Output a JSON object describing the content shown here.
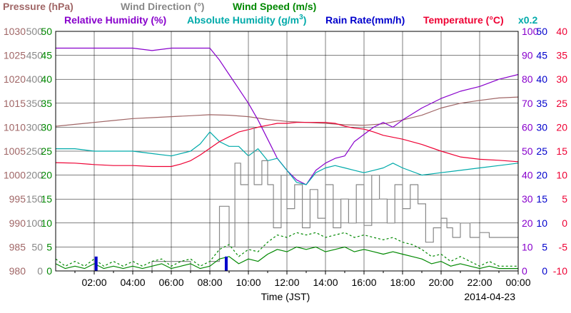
{
  "chart_data": {
    "type": "line",
    "title": "",
    "xlabel": "Time (JST)",
    "date_label": "2014-04-23",
    "x_ticks": [
      "02:00",
      "04:00",
      "06:00",
      "08:00",
      "10:00",
      "12:00",
      "14:00",
      "16:00",
      "18:00",
      "20:00",
      "22:00",
      "00:00"
    ],
    "x_range_hours": [
      0,
      24
    ],
    "grid": true,
    "legend": [
      {
        "label": "Pressure (hPa)",
        "color": "#a06666"
      },
      {
        "label": "Wind Direction (°)",
        "color": "#888888"
      },
      {
        "label": "Wind Speed (m/s)",
        "color": "#008800"
      },
      {
        "label": "Relative Humidity (%)",
        "color": "#8800cc"
      },
      {
        "label": "Absolute Humidity (g/m",
        "sup": "3",
        "close": ")",
        "color": "#00aaaa"
      },
      {
        "label": "Rain Rate(mm/h)",
        "color": "#0000cc"
      },
      {
        "label": "Temperature (°C)",
        "color": "#ee0033"
      }
    ],
    "abs_humidity_scale_note": "x0.2",
    "axes": {
      "pressure": {
        "ticks": [
          980,
          985,
          990,
          995,
          1000,
          1005,
          1010,
          1015,
          1020,
          1025,
          1030
        ],
        "range": [
          980,
          1030
        ],
        "color": "#a06666"
      },
      "wind_direction": {
        "ticks": [
          0,
          50,
          100,
          150,
          200,
          250,
          300,
          350,
          400,
          450,
          500
        ],
        "range": [
          0,
          500
        ],
        "color": "#888888"
      },
      "wind_speed": {
        "ticks": [
          0,
          5,
          10,
          15,
          20,
          25,
          30,
          35,
          40,
          45,
          50
        ],
        "range": [
          0,
          50
        ],
        "color": "#008800"
      },
      "humidity": {
        "ticks": [
          0,
          10,
          20,
          30,
          40,
          50,
          60,
          70,
          80,
          90,
          100
        ],
        "range": [
          0,
          100
        ],
        "color": "#8800cc"
      },
      "rain_rate": {
        "ticks": [
          0,
          5,
          10,
          15,
          20,
          25,
          30,
          35,
          40,
          45,
          50
        ],
        "range": [
          0,
          50
        ],
        "color": "#0000cc"
      },
      "temperature": {
        "ticks": [
          -10,
          -5,
          0,
          5,
          10,
          15,
          20,
          25,
          30,
          35,
          40
        ],
        "range": [
          -10,
          40
        ],
        "color": "#ee0033"
      }
    },
    "series": [
      {
        "key": "pressure",
        "axis": "pressure",
        "color": "#a06666",
        "x": [
          0,
          1,
          2,
          3,
          4,
          5,
          6,
          7,
          8,
          9,
          10,
          11,
          12,
          13,
          14,
          15,
          16,
          17,
          18,
          19,
          20,
          21,
          22,
          23,
          24
        ],
        "values": [
          1010.2,
          1010.6,
          1011.0,
          1011.4,
          1011.8,
          1012.0,
          1012.2,
          1012.4,
          1012.6,
          1012.5,
          1012.2,
          1011.6,
          1011.2,
          1011.0,
          1010.8,
          1010.5,
          1010.4,
          1010.7,
          1011.5,
          1012.5,
          1014.0,
          1015.0,
          1015.6,
          1016.1,
          1016.3
        ]
      },
      {
        "key": "relative_humidity",
        "axis": "humidity",
        "color": "#8800cc",
        "x": [
          0,
          2,
          4,
          5,
          6,
          7,
          8,
          8.5,
          9,
          9.5,
          10,
          10.5,
          11,
          11.5,
          12,
          12.5,
          13,
          13.5,
          14,
          14.5,
          15,
          15.5,
          16,
          16.5,
          17,
          17.5,
          18,
          19,
          20,
          21,
          22,
          23,
          24
        ],
        "values": [
          93,
          93,
          93,
          92,
          93,
          93,
          93,
          88,
          82,
          76,
          70,
          63,
          55,
          47,
          42,
          38,
          36,
          42,
          45,
          47,
          48,
          54,
          57,
          60,
          62,
          60,
          63,
          68,
          72,
          75,
          77,
          80,
          82
        ]
      },
      {
        "key": "absolute_humidity",
        "axis": "humidity",
        "color": "#00aaaa",
        "x": [
          0,
          1,
          2,
          3,
          4,
          5,
          6,
          7,
          7.5,
          8,
          8.5,
          9,
          9.5,
          10,
          10.5,
          11,
          11.5,
          12,
          12.5,
          13,
          13.5,
          14,
          14.5,
          15,
          15.5,
          16,
          16.5,
          17,
          17.5,
          18,
          19,
          20,
          21,
          22,
          23,
          24
        ],
        "values": [
          51,
          51,
          50,
          50,
          50,
          49,
          48,
          50,
          53,
          58,
          54,
          52,
          52,
          48,
          51,
          46,
          47,
          42,
          37,
          36,
          41,
          43,
          44,
          43,
          42,
          41,
          42,
          43,
          45,
          43,
          40,
          41,
          42,
          43,
          44,
          45
        ]
      },
      {
        "key": "temperature",
        "axis": "temperature",
        "color": "#ee0033",
        "x": [
          0,
          1,
          2,
          3,
          4,
          5,
          6,
          6.5,
          7,
          7.5,
          8,
          8.5,
          9,
          9.5,
          10,
          10.5,
          11,
          11.5,
          12,
          12.5,
          13,
          13.5,
          14,
          14.5,
          15,
          15.5,
          16,
          16.5,
          17,
          18,
          19,
          20,
          21,
          22,
          23,
          24
        ],
        "values": [
          12.6,
          12.5,
          12.2,
          12.0,
          12.0,
          11.8,
          11.8,
          12.3,
          13.0,
          14.2,
          15.6,
          17.0,
          18.0,
          19.0,
          19.5,
          20.0,
          20.4,
          20.8,
          20.8,
          21.0,
          21.0,
          21.0,
          21.0,
          20.8,
          20.2,
          19.8,
          19.6,
          19.0,
          18.3,
          17.5,
          16.4,
          15.0,
          13.8,
          13.3,
          13.1,
          12.8
        ]
      },
      {
        "key": "wind_direction",
        "axis": "wind_direction",
        "color": "#888888",
        "x": [
          5.0,
          5.0,
          7.0,
          7.0,
          8.0,
          8.0,
          8.5,
          8.5,
          9.0,
          9.0,
          9.3,
          9.3,
          9.6,
          9.6,
          10.0,
          10.0,
          10.3,
          10.3,
          10.7,
          10.7,
          11.0,
          11.0,
          11.3,
          11.3,
          11.7,
          11.7,
          12.0,
          12.0,
          12.4,
          12.4,
          12.8,
          12.8,
          13.2,
          13.2,
          13.6,
          13.6,
          14.0,
          14.0,
          14.4,
          14.4,
          14.8,
          14.8,
          15.2,
          15.2,
          15.6,
          15.6,
          16.0,
          16.0,
          16.4,
          16.4,
          16.8,
          16.8,
          17.2,
          17.2,
          17.6,
          17.6,
          18.0,
          18.0,
          18.4,
          18.4,
          18.8,
          18.8,
          19.2,
          19.2,
          19.6,
          19.6,
          20.0,
          20.0,
          20.3,
          20.3,
          20.6,
          20.6,
          21.0,
          21.0,
          21.5,
          21.5,
          22.0,
          22.0,
          22.5,
          22.5,
          23.0,
          23.0,
          24.0
        ],
        "values": [
          0,
          20,
          20,
          0,
          0,
          20,
          20,
          135,
          135,
          50,
          50,
          225,
          225,
          180,
          180,
          300,
          300,
          180,
          180,
          230,
          230,
          180,
          180,
          90,
          90,
          200,
          200,
          130,
          130,
          180,
          180,
          90,
          90,
          170,
          170,
          110,
          110,
          180,
          180,
          90,
          90,
          150,
          150,
          100,
          100,
          180,
          180,
          95,
          95,
          200,
          200,
          150,
          150,
          100,
          100,
          180,
          180,
          130,
          130,
          180,
          180,
          140,
          140,
          60,
          60,
          90,
          90,
          110,
          110,
          90,
          90,
          70,
          70,
          100,
          100,
          70,
          70,
          80,
          80,
          70,
          70,
          70,
          70
        ]
      },
      {
        "key": "wind_speed",
        "axis": "wind_speed",
        "color": "#008800",
        "x": [
          0,
          0.5,
          1.0,
          1.5,
          2.0,
          2.5,
          3.0,
          3.5,
          4.0,
          4.5,
          5.0,
          5.5,
          6.0,
          6.5,
          7.0,
          7.5,
          8.0,
          8.5,
          9.0,
          9.5,
          10.0,
          10.5,
          11.0,
          11.5,
          12.0,
          12.5,
          13.0,
          13.5,
          14.0,
          14.5,
          15.0,
          15.5,
          16.0,
          16.5,
          17.0,
          17.5,
          18.0,
          18.5,
          19.0,
          19.5,
          20.0,
          20.5,
          21.0,
          21.5,
          22.0,
          22.5,
          23.0,
          23.5,
          24.0
        ],
        "values": [
          1.5,
          0.5,
          1.0,
          0.5,
          1.5,
          0.5,
          1.0,
          0.5,
          1.0,
          0.5,
          1.0,
          1.5,
          0.5,
          1.0,
          1.5,
          0.5,
          1.0,
          2.5,
          3.0,
          1.5,
          2.5,
          2.0,
          3.5,
          4.5,
          4.0,
          5.0,
          4.5,
          5.0,
          4.0,
          4.5,
          5.0,
          4.0,
          4.5,
          4.0,
          3.5,
          4.0,
          3.5,
          3.0,
          2.5,
          1.5,
          2.0,
          1.0,
          1.5,
          1.0,
          0.5,
          1.0,
          0.5,
          0.5,
          0.5
        ]
      },
      {
        "key": "wind_gust",
        "axis": "wind_speed",
        "color": "#008800",
        "dashed": true,
        "x": [
          0,
          0.5,
          1.0,
          1.5,
          2.0,
          2.5,
          3.0,
          3.5,
          4.0,
          4.5,
          5.0,
          5.5,
          6.0,
          6.5,
          7.0,
          7.5,
          8.0,
          8.5,
          9.0,
          9.5,
          10.0,
          10.5,
          11.0,
          11.5,
          12.0,
          12.5,
          13.0,
          13.5,
          14.0,
          14.5,
          15.0,
          15.5,
          16.0,
          16.5,
          17.0,
          17.5,
          18.0,
          18.5,
          19.0,
          19.5,
          20.0,
          20.5,
          21.0,
          21.5,
          22.0,
          22.5,
          23.0,
          23.5,
          24.0
        ],
        "values": [
          2.5,
          1.0,
          2.0,
          1.0,
          2.5,
          1.0,
          2.0,
          1.0,
          2.0,
          1.0,
          2.0,
          2.5,
          1.0,
          2.0,
          2.5,
          1.0,
          2.0,
          4.5,
          5.5,
          3.0,
          4.5,
          4.0,
          6.0,
          7.5,
          7.0,
          8.0,
          7.5,
          8.0,
          7.0,
          7.5,
          8.0,
          7.0,
          7.5,
          7.0,
          6.5,
          7.0,
          6.0,
          5.5,
          4.5,
          3.0,
          3.5,
          2.0,
          3.0,
          2.0,
          1.0,
          2.0,
          1.0,
          1.0,
          1.0
        ]
      },
      {
        "key": "rain_rate",
        "axis": "rain_rate",
        "color": "#0000cc",
        "bars": true,
        "x": [
          2.1,
          8.85
        ],
        "values": [
          3,
          3
        ]
      }
    ]
  }
}
